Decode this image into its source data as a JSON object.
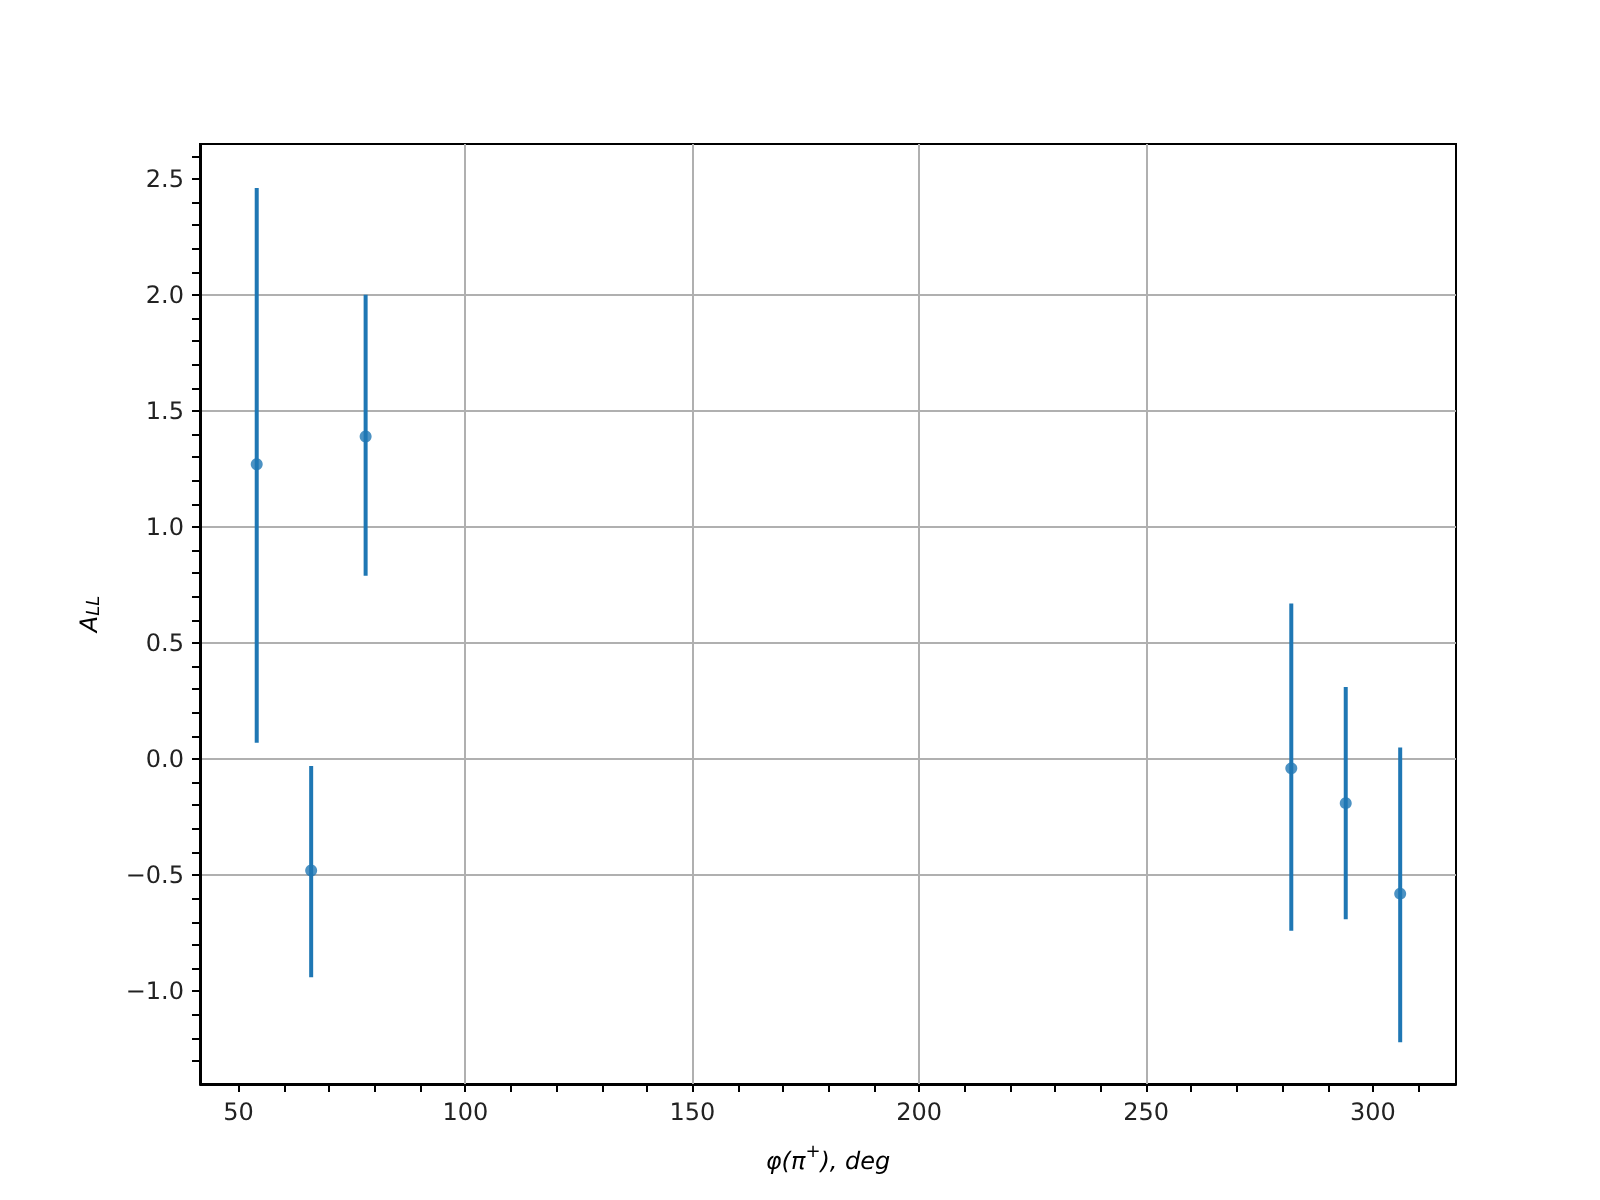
{
  "chart_data": {
    "type": "scatter",
    "xlabel": "φ(π$^{+}$), deg",
    "ylabel": "A$_{LL}$",
    "x": [
      54,
      66,
      78,
      282,
      294,
      306
    ],
    "series": [
      {
        "color": "#1f77b4",
        "values": [
          1.27,
          -0.48,
          1.39,
          -0.04,
          -0.19,
          -0.58
        ],
        "errors": [
          [
            0.07,
            2.46
          ],
          [
            -0.94,
            -0.03
          ],
          [
            0.79,
            2.0
          ],
          [
            -0.74,
            0.67
          ],
          [
            -0.69,
            0.31
          ],
          [
            -1.22,
            0.05
          ]
        ]
      }
    ],
    "marker": "circle",
    "grid": true,
    "xlim": [
      41.5,
      318.3
    ],
    "ylim": [
      -1.4,
      2.65
    ],
    "xticks": [
      {
        "value": 50,
        "label": "50"
      },
      {
        "value": 60,
        "label": null
      },
      {
        "value": 70,
        "label": null
      },
      {
        "value": 80,
        "label": null
      },
      {
        "value": 90,
        "label": null
      },
      {
        "value": 100,
        "label": "100"
      },
      {
        "value": 110,
        "label": null
      },
      {
        "value": 120,
        "label": null
      },
      {
        "value": 130,
        "label": null
      },
      {
        "value": 140,
        "label": null
      },
      {
        "value": 150,
        "label": "150"
      },
      {
        "value": 160,
        "label": null
      },
      {
        "value": 170,
        "label": null
      },
      {
        "value": 180,
        "label": null
      },
      {
        "value": 190,
        "label": null
      },
      {
        "value": 200,
        "label": "200"
      },
      {
        "value": 210,
        "label": null
      },
      {
        "value": 220,
        "label": null
      },
      {
        "value": 230,
        "label": null
      },
      {
        "value": 240,
        "label": null
      },
      {
        "value": 250,
        "label": "250"
      },
      {
        "value": 260,
        "label": null
      },
      {
        "value": 270,
        "label": null
      },
      {
        "value": 280,
        "label": null
      },
      {
        "value": 290,
        "label": null
      },
      {
        "value": 300,
        "label": "300"
      },
      {
        "value": 310,
        "label": null
      }
    ],
    "yticks": [
      {
        "value": -1.3,
        "label": null
      },
      {
        "value": -1.2,
        "label": null
      },
      {
        "value": -1.1,
        "label": null
      },
      {
        "value": -1.0,
        "label": "−1.0"
      },
      {
        "value": -0.9,
        "label": null
      },
      {
        "value": -0.8,
        "label": null
      },
      {
        "value": -0.7,
        "label": null
      },
      {
        "value": -0.6,
        "label": null
      },
      {
        "value": -0.5,
        "label": "−0.5"
      },
      {
        "value": -0.4,
        "label": null
      },
      {
        "value": -0.3,
        "label": null
      },
      {
        "value": -0.2,
        "label": null
      },
      {
        "value": -0.1,
        "label": null
      },
      {
        "value": 0,
        "label": "0.0"
      },
      {
        "value": 0.1,
        "label": null
      },
      {
        "value": 0.2,
        "label": null
      },
      {
        "value": 0.3,
        "label": null
      },
      {
        "value": 0.4,
        "label": null
      },
      {
        "value": 0.5,
        "label": "0.5"
      },
      {
        "value": 0.6,
        "label": null
      },
      {
        "value": 0.7,
        "label": null
      },
      {
        "value": 0.8,
        "label": null
      },
      {
        "value": 0.9,
        "label": null
      },
      {
        "value": 1.0,
        "label": "1.0"
      },
      {
        "value": 1.1,
        "label": null
      },
      {
        "value": 1.2,
        "label": null
      },
      {
        "value": 1.3,
        "label": null
      },
      {
        "value": 1.4,
        "label": null
      },
      {
        "value": 1.5,
        "label": "1.5"
      },
      {
        "value": 1.6,
        "label": null
      },
      {
        "value": 1.7,
        "label": null
      },
      {
        "value": 1.8,
        "label": null
      },
      {
        "value": 1.9,
        "label": null
      },
      {
        "value": 2.0,
        "label": "2.0"
      },
      {
        "value": 2.1,
        "label": null
      },
      {
        "value": 2.2,
        "label": null
      },
      {
        "value": 2.3,
        "label": null
      },
      {
        "value": 2.4,
        "label": null
      },
      {
        "value": 2.5,
        "label": "2.5"
      },
      {
        "value": 2.6,
        "label": null
      }
    ]
  }
}
